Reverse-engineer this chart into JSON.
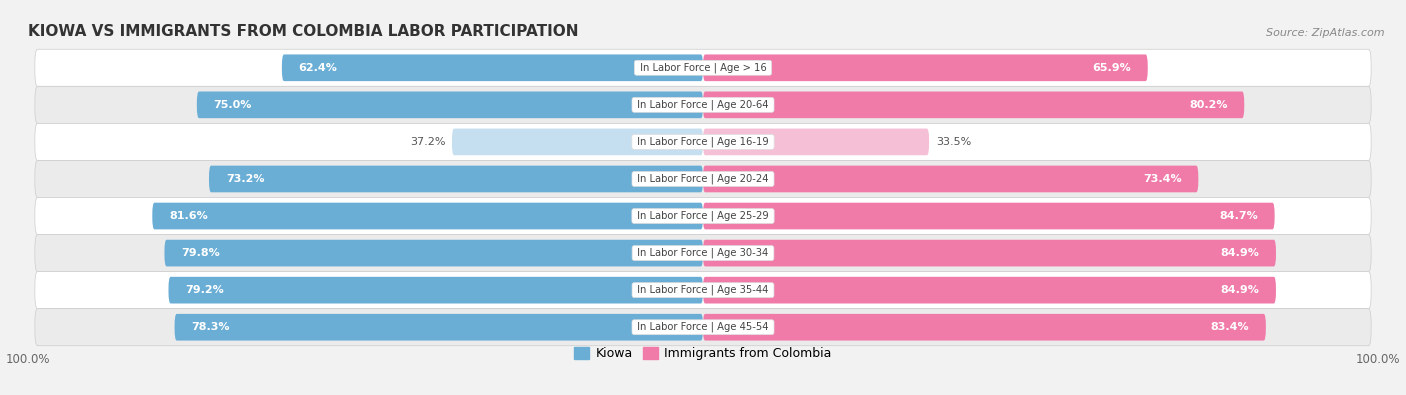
{
  "title": "Kiowa vs Immigrants from Colombia Labor Participation",
  "source": "Source: ZipAtlas.com",
  "categories": [
    "In Labor Force | Age > 16",
    "In Labor Force | Age 20-64",
    "In Labor Force | Age 16-19",
    "In Labor Force | Age 20-24",
    "In Labor Force | Age 25-29",
    "In Labor Force | Age 30-34",
    "In Labor Force | Age 35-44",
    "In Labor Force | Age 45-54"
  ],
  "kiowa_values": [
    62.4,
    75.0,
    37.2,
    73.2,
    81.6,
    79.8,
    79.2,
    78.3
  ],
  "colombia_values": [
    65.9,
    80.2,
    33.5,
    73.4,
    84.7,
    84.9,
    84.9,
    83.4
  ],
  "kiowa_color": "#6aaed6",
  "kiowa_color_light": "#c5dff0",
  "colombia_color": "#f07aa8",
  "colombia_color_light": "#f5c0d5",
  "bg_color": "#f2f2f2",
  "row_bg_odd": "#ffffff",
  "row_bg_even": "#ebebeb",
  "max_value": 100.0,
  "legend_labels": [
    "Kiowa",
    "Immigrants from Colombia"
  ]
}
